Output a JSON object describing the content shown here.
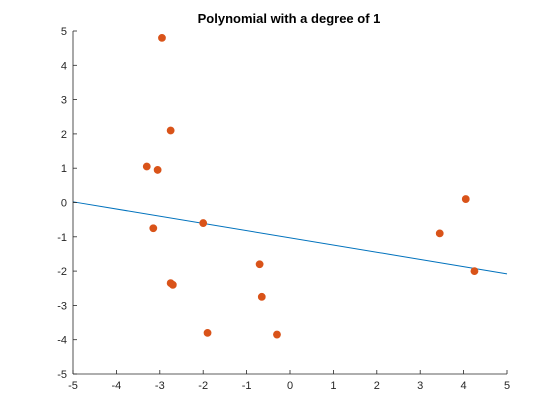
{
  "chart_data": {
    "type": "scatter",
    "title": "Polynomial with a degree of 1",
    "xlabel": "",
    "ylabel": "",
    "xlim": [
      -5,
      5
    ],
    "ylim": [
      -5,
      5
    ],
    "x_ticks": [
      -5,
      -4,
      -3,
      -2,
      -1,
      0,
      1,
      2,
      3,
      4,
      5
    ],
    "y_ticks": [
      -5,
      -4,
      -3,
      -2,
      -1,
      0,
      1,
      2,
      3,
      4,
      5
    ],
    "grid": false,
    "series": [
      {
        "kind": "scatter",
        "color": "#d95319",
        "points": [
          {
            "x": -2.95,
            "y": 4.8
          },
          {
            "x": -2.75,
            "y": 2.1
          },
          {
            "x": -3.3,
            "y": 1.05
          },
          {
            "x": -3.05,
            "y": 0.95
          },
          {
            "x": -3.15,
            "y": -0.75
          },
          {
            "x": -2.0,
            "y": -0.6
          },
          {
            "x": -2.75,
            "y": -2.35
          },
          {
            "x": -2.7,
            "y": -2.4
          },
          {
            "x": -1.9,
            "y": -3.8
          },
          {
            "x": -0.7,
            "y": -1.8
          },
          {
            "x": -0.65,
            "y": -2.75
          },
          {
            "x": -0.3,
            "y": -3.85
          },
          {
            "x": 3.45,
            "y": -0.9
          },
          {
            "x": 4.05,
            "y": 0.1
          },
          {
            "x": 4.25,
            "y": -2.0
          }
        ]
      },
      {
        "kind": "line",
        "color": "#0072bd",
        "points": [
          {
            "x": -5,
            "y": 0.02
          },
          {
            "x": 5,
            "y": -2.08
          }
        ]
      }
    ]
  }
}
